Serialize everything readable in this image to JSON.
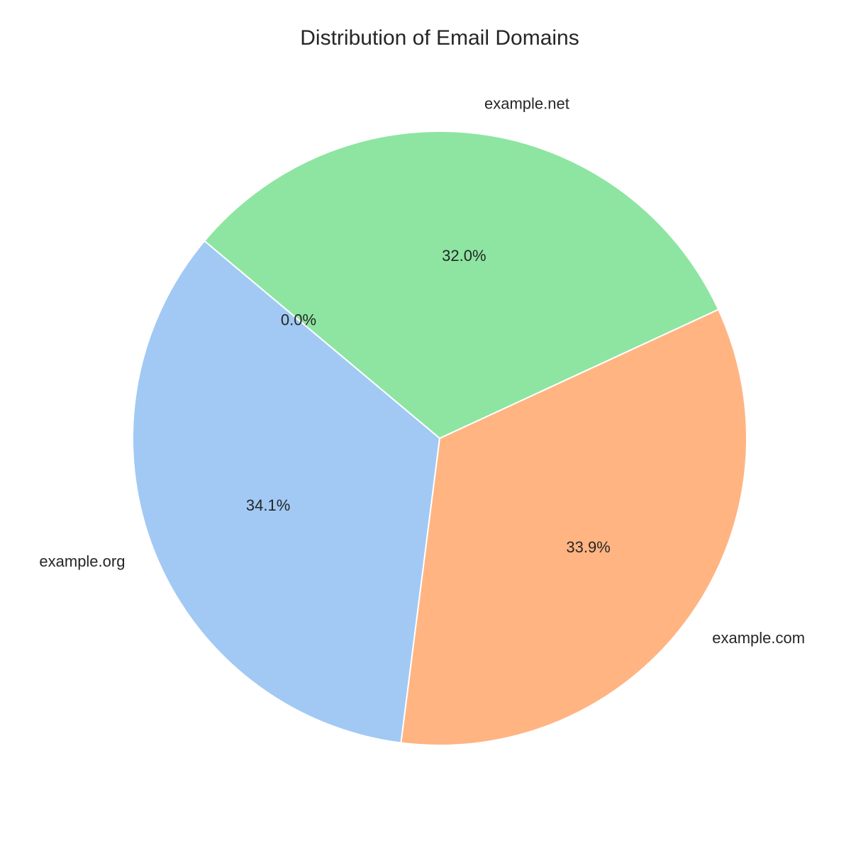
{
  "chart_data": {
    "type": "pie",
    "title": "Distribution of Email Domains",
    "slices": [
      {
        "label": "example.org",
        "pct_label": "34.1%",
        "value": 34.1,
        "color": "#a1c9f4"
      },
      {
        "label": "example.com",
        "pct_label": "33.9%",
        "value": 33.9,
        "color": "#ffb482"
      },
      {
        "label": "example.net",
        "pct_label": "32.0%",
        "value": 32.0,
        "color": "#8de5a1"
      },
      {
        "label": "",
        "pct_label": "0.0%",
        "value": 0.0,
        "color": "#ff9f9b"
      }
    ],
    "start_angle_deg": 140,
    "direction": "counterclockwise",
    "legend": "none"
  }
}
